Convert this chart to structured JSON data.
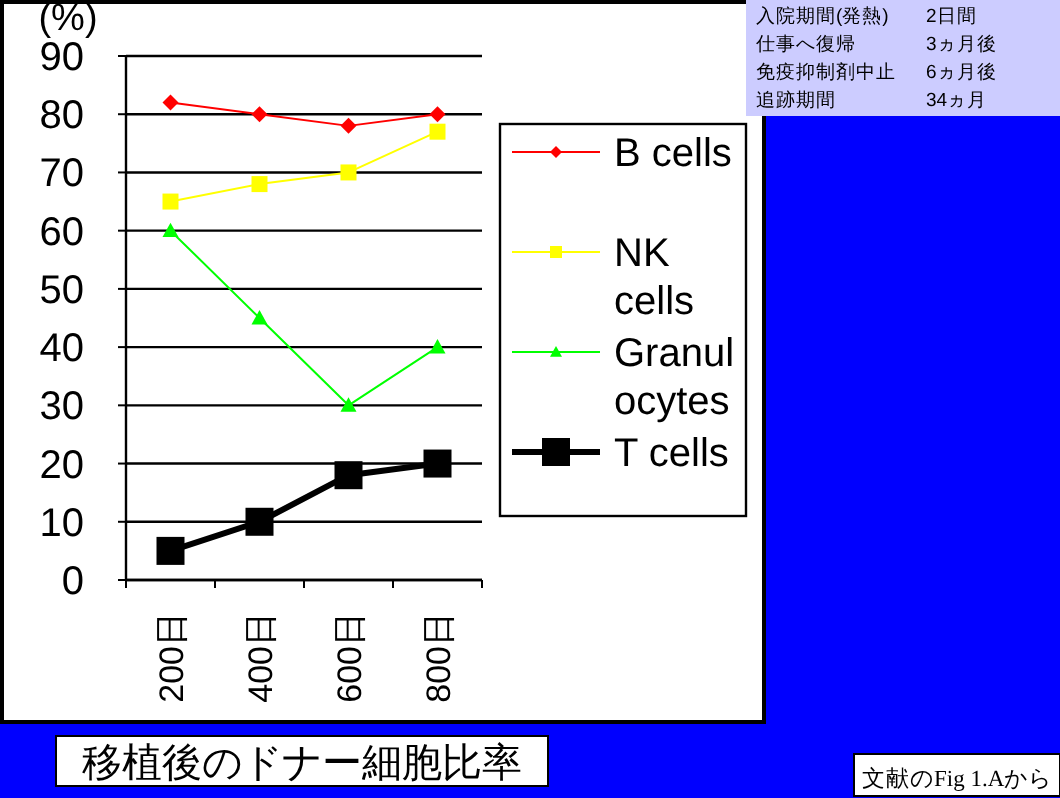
{
  "chart_data": {
    "type": "line",
    "title": "移植後のドナー細胞比率",
    "ylabel": "(%)",
    "categories": [
      "200日",
      "400日",
      "600日",
      "800日"
    ],
    "series": [
      {
        "name": "B cells",
        "color": "#ff0000",
        "marker": "diamond",
        "values": [
          82,
          80,
          78,
          80
        ]
      },
      {
        "name": "NK cells",
        "color": "#ffff00",
        "marker": "square",
        "values": [
          65,
          68,
          70,
          77
        ]
      },
      {
        "name": "Granulocytes",
        "color": "#00ff00",
        "marker": "triangle",
        "values": [
          60,
          45,
          30,
          40
        ]
      },
      {
        "name": "T cells",
        "color": "#000000",
        "marker": "square",
        "values": [
          5,
          10,
          18,
          20
        ]
      }
    ],
    "ylim": [
      0,
      90
    ],
    "yticks": [
      0,
      10,
      20,
      30,
      40,
      50,
      60,
      70,
      80,
      90
    ],
    "grid": "y",
    "legend": "right",
    "annotations": [
      "入院期間(発熱)",
      "2日間",
      "仕事へ復帰",
      "3ヵ月後",
      "免疫抑制剤中止",
      "6ヵ月後",
      "追跡期間",
      "34ヵ月",
      "文献のFig 1.Aから"
    ]
  }
}
